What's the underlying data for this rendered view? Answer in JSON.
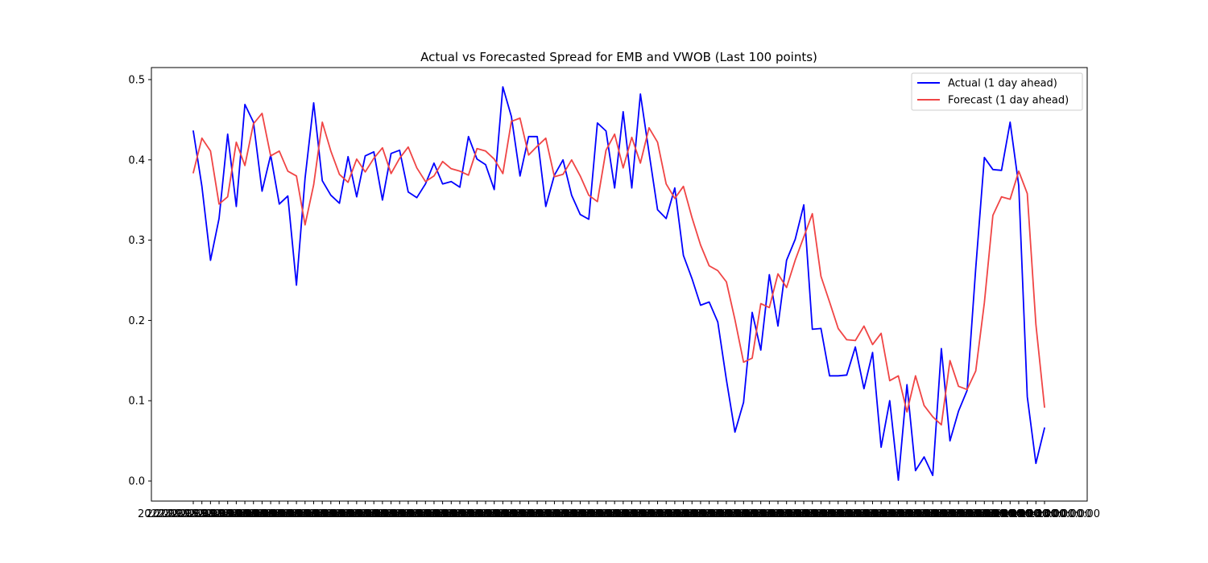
{
  "chart_data": {
    "type": "line",
    "title": "Actual vs Forecasted Spread for EMB and VWOB (Last 100 points)",
    "xlabel": "",
    "ylabel": "",
    "ylim": [
      -0.025,
      0.515
    ],
    "yticks": [
      0.0,
      0.1,
      0.2,
      0.3,
      0.4,
      0.5
    ],
    "ytick_labels": [
      "0.0",
      "0.1",
      "0.2",
      "0.3",
      "0.4",
      "0.5"
    ],
    "x_tick_labels_overlap_text": "2022-09-13 00:00:00",
    "grid": false,
    "legend": "top-right",
    "series": [
      {
        "name": "Actual (1 day ahead)",
        "color": "#0000ff",
        "values": [
          0.436,
          0.367,
          0.275,
          0.327,
          0.432,
          0.342,
          0.469,
          0.447,
          0.361,
          0.406,
          0.345,
          0.355,
          0.244,
          0.377,
          0.471,
          0.374,
          0.356,
          0.346,
          0.404,
          0.354,
          0.405,
          0.41,
          0.35,
          0.408,
          0.412,
          0.36,
          0.353,
          0.37,
          0.396,
          0.37,
          0.373,
          0.366,
          0.429,
          0.401,
          0.394,
          0.363,
          0.491,
          0.454,
          0.38,
          0.429,
          0.429,
          0.342,
          0.381,
          0.4,
          0.356,
          0.332,
          0.326,
          0.446,
          0.436,
          0.365,
          0.46,
          0.365,
          0.482,
          0.409,
          0.338,
          0.327,
          0.365,
          0.281,
          0.252,
          0.219,
          0.223,
          0.198,
          0.126,
          0.061,
          0.098,
          0.21,
          0.163,
          0.257,
          0.193,
          0.275,
          0.301,
          0.344,
          0.189,
          0.19,
          0.131,
          0.131,
          0.132,
          0.167,
          0.115,
          0.16,
          0.042,
          0.1,
          0.001,
          0.12,
          0.013,
          0.03,
          0.007,
          0.165,
          0.05,
          0.087,
          0.113,
          0.265,
          0.403,
          0.388,
          0.387,
          0.447,
          0.368,
          0.105,
          0.022,
          0.066
        ]
      },
      {
        "name": "Forecast (1 day ahead)",
        "color": "#f04545",
        "values": [
          0.384,
          0.427,
          0.411,
          0.345,
          0.354,
          0.422,
          0.393,
          0.445,
          0.458,
          0.405,
          0.411,
          0.386,
          0.38,
          0.319,
          0.369,
          0.447,
          0.411,
          0.382,
          0.372,
          0.401,
          0.385,
          0.402,
          0.415,
          0.383,
          0.402,
          0.416,
          0.39,
          0.373,
          0.38,
          0.398,
          0.389,
          0.386,
          0.381,
          0.414,
          0.411,
          0.401,
          0.383,
          0.448,
          0.452,
          0.406,
          0.417,
          0.427,
          0.379,
          0.382,
          0.4,
          0.38,
          0.356,
          0.348,
          0.412,
          0.432,
          0.39,
          0.428,
          0.396,
          0.44,
          0.422,
          0.37,
          0.352,
          0.367,
          0.328,
          0.294,
          0.268,
          0.262,
          0.248,
          0.201,
          0.148,
          0.153,
          0.221,
          0.216,
          0.258,
          0.241,
          0.275,
          0.304,
          0.333,
          0.255,
          0.223,
          0.19,
          0.176,
          0.175,
          0.193,
          0.17,
          0.184,
          0.125,
          0.131,
          0.086,
          0.131,
          0.094,
          0.08,
          0.07,
          0.15,
          0.118,
          0.114,
          0.137,
          0.222,
          0.331,
          0.354,
          0.351,
          0.386,
          0.358,
          0.195,
          0.092
        ]
      }
    ]
  }
}
